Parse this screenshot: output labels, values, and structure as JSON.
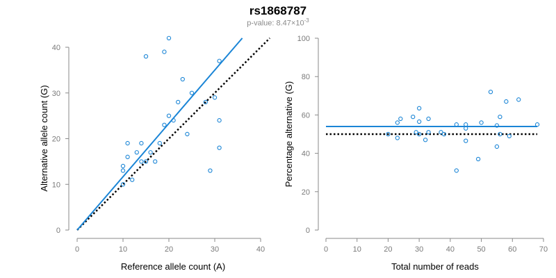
{
  "page": {
    "title": "rs1868787",
    "subtitle_prefix": "p-value: 8.47×10",
    "subtitle_exponent": "-3"
  },
  "colors": {
    "points": "#1a85d6",
    "fit_line": "#1a85d6",
    "reference_line": "#000000",
    "axis": "#8a8a8a"
  },
  "chart_data": [
    {
      "type": "scatter",
      "xlabel": "Reference allele count (A)",
      "ylabel": "Alternative allele count (G)",
      "xlim": [
        0,
        40
      ],
      "ylim": [
        0,
        40
      ],
      "xticks": [
        0,
        10,
        20,
        30,
        40
      ],
      "yticks": [
        0,
        10,
        20,
        30,
        40
      ],
      "grid": false,
      "points": [
        {
          "x": 20,
          "y": 42
        },
        {
          "x": 15,
          "y": 38
        },
        {
          "x": 19,
          "y": 39
        },
        {
          "x": 31,
          "y": 37
        },
        {
          "x": 23,
          "y": 33
        },
        {
          "x": 25,
          "y": 30
        },
        {
          "x": 30,
          "y": 29
        },
        {
          "x": 22,
          "y": 28
        },
        {
          "x": 28,
          "y": 28
        },
        {
          "x": 20,
          "y": 25
        },
        {
          "x": 21,
          "y": 24
        },
        {
          "x": 31,
          "y": 24
        },
        {
          "x": 19,
          "y": 23
        },
        {
          "x": 24,
          "y": 21
        },
        {
          "x": 11,
          "y": 19
        },
        {
          "x": 14,
          "y": 19
        },
        {
          "x": 18,
          "y": 19
        },
        {
          "x": 31,
          "y": 18
        },
        {
          "x": 13,
          "y": 17
        },
        {
          "x": 16,
          "y": 17
        },
        {
          "x": 11,
          "y": 16
        },
        {
          "x": 14,
          "y": 15
        },
        {
          "x": 15,
          "y": 15
        },
        {
          "x": 17,
          "y": 15
        },
        {
          "x": 10,
          "y": 14
        },
        {
          "x": 10,
          "y": 13
        },
        {
          "x": 29,
          "y": 13
        },
        {
          "x": 12,
          "y": 11
        },
        {
          "x": 10,
          "y": 10
        }
      ],
      "fit_line": {
        "x": [
          0,
          36
        ],
        "y": [
          0,
          42
        ]
      },
      "reference_line": {
        "x": [
          0,
          42
        ],
        "y": [
          0,
          42
        ]
      }
    },
    {
      "type": "scatter",
      "xlabel": "Total number of reads",
      "ylabel": "Percentage alternative (G)",
      "xlim": [
        0,
        70
      ],
      "ylim": [
        0,
        100
      ],
      "xticks": [
        0,
        10,
        20,
        30,
        40,
        50,
        60,
        70
      ],
      "yticks": [
        0,
        20,
        40,
        60,
        80,
        100
      ],
      "grid": false,
      "points": [
        {
          "x": 53,
          "y": 72
        },
        {
          "x": 62,
          "y": 68
        },
        {
          "x": 58,
          "y": 67
        },
        {
          "x": 30,
          "y": 63.5
        },
        {
          "x": 28,
          "y": 59
        },
        {
          "x": 56,
          "y": 59
        },
        {
          "x": 24,
          "y": 58
        },
        {
          "x": 33,
          "y": 58
        },
        {
          "x": 23,
          "y": 56
        },
        {
          "x": 30,
          "y": 56.5
        },
        {
          "x": 42,
          "y": 55
        },
        {
          "x": 45,
          "y": 55
        },
        {
          "x": 50,
          "y": 56
        },
        {
          "x": 68,
          "y": 55
        },
        {
          "x": 55,
          "y": 54.5
        },
        {
          "x": 45,
          "y": 53
        },
        {
          "x": 29,
          "y": 51
        },
        {
          "x": 33,
          "y": 51
        },
        {
          "x": 37,
          "y": 51
        },
        {
          "x": 20,
          "y": 50
        },
        {
          "x": 38,
          "y": 50
        },
        {
          "x": 30,
          "y": 50
        },
        {
          "x": 56,
          "y": 50
        },
        {
          "x": 59,
          "y": 49
        },
        {
          "x": 23,
          "y": 48
        },
        {
          "x": 32,
          "y": 47
        },
        {
          "x": 45,
          "y": 46.5
        },
        {
          "x": 55,
          "y": 43.5
        },
        {
          "x": 49,
          "y": 37
        },
        {
          "x": 42,
          "y": 31
        }
      ],
      "fit_line": {
        "x": [
          0,
          68
        ],
        "y": [
          54,
          54
        ]
      },
      "reference_line": {
        "x": [
          0,
          68
        ],
        "y": [
          50,
          50
        ]
      }
    }
  ]
}
